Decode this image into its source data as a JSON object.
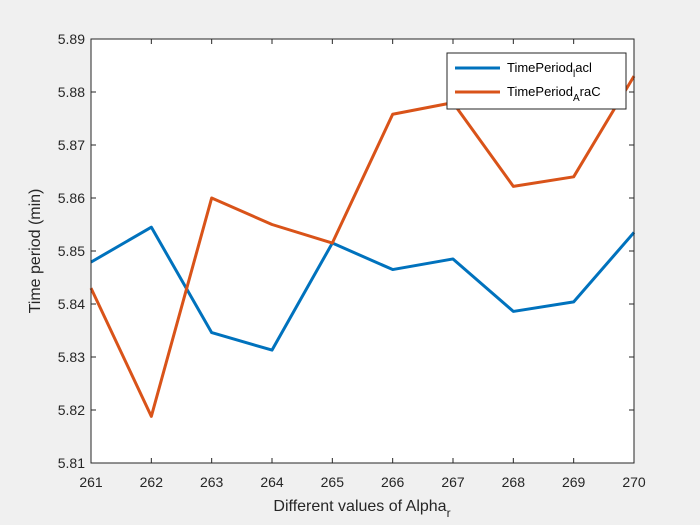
{
  "chart_data": {
    "type": "line",
    "xlabel": "Different values of Alpha",
    "xlabel_sub": "r",
    "ylabel": "Time period (min)",
    "x": [
      261,
      262,
      263,
      264,
      265,
      266,
      267,
      268,
      269,
      270
    ],
    "xlim": [
      261,
      270
    ],
    "ylim": [
      5.81,
      5.89
    ],
    "xticks": [
      "261",
      "262",
      "263",
      "264",
      "265",
      "266",
      "267",
      "268",
      "269",
      "270"
    ],
    "yticks": [
      "5.81",
      "5.82",
      "5.83",
      "5.84",
      "5.85",
      "5.86",
      "5.87",
      "5.88",
      "5.89"
    ],
    "grid": false,
    "legend_position": "top-right",
    "series": [
      {
        "name": "TimePeriod",
        "name_sub": "l",
        "name_suffix": "acl",
        "color": "#0072BD",
        "values": [
          5.8479,
          5.8545,
          5.8346,
          5.8313,
          5.8515,
          5.8465,
          5.8485,
          5.8386,
          5.8404,
          5.8535
        ]
      },
      {
        "name": "TimePeriod",
        "name_sub": "A",
        "name_suffix": "raC",
        "color": "#D95319",
        "values": [
          5.843,
          5.8188,
          5.86,
          5.855,
          5.8515,
          5.8758,
          5.878,
          5.8622,
          5.864,
          5.883
        ]
      }
    ]
  }
}
